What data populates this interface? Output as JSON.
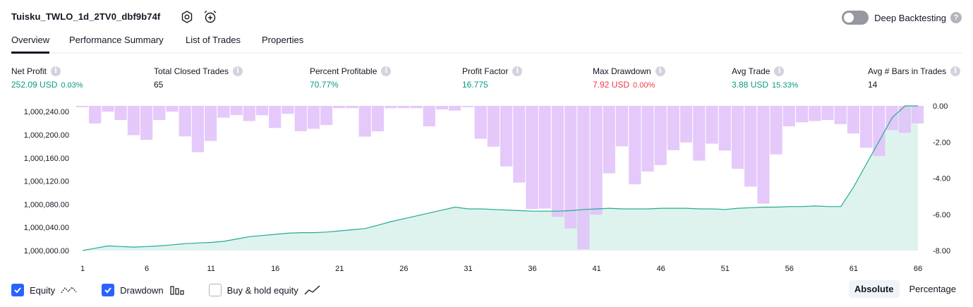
{
  "header": {
    "title": "Tuisku_TWLO_1d_2TV0_dbf9b74f",
    "deep_backtesting_label": "Deep Backtesting",
    "deep_backtesting_on": false,
    "help_glyph": "?"
  },
  "tabs": [
    {
      "label": "Overview",
      "active": true
    },
    {
      "label": "Performance Summary",
      "active": false
    },
    {
      "label": "List of Trades",
      "active": false
    },
    {
      "label": "Properties",
      "active": false
    }
  ],
  "metrics": [
    {
      "label": "Net Profit",
      "value": "252.09 USD",
      "pct": "0.03%",
      "tone": "pos"
    },
    {
      "label": "Total Closed Trades",
      "value": "65",
      "pct": "",
      "tone": "neu"
    },
    {
      "label": "Percent Profitable",
      "value": "70.77%",
      "pct": "",
      "tone": "pos"
    },
    {
      "label": "Profit Factor",
      "value": "16.775",
      "pct": "",
      "tone": "pos"
    },
    {
      "label": "Max Drawdown",
      "value": "7.92 USD",
      "pct": "0.00%",
      "tone": "neg"
    },
    {
      "label": "Avg Trade",
      "value": "3.88 USD",
      "pct": "15.33%",
      "tone": "pos"
    },
    {
      "label": "Avg # Bars in Trades",
      "value": "14",
      "pct": "",
      "tone": "neu"
    }
  ],
  "chart_data": {
    "type": "area",
    "x": [
      1,
      2,
      3,
      4,
      5,
      6,
      7,
      8,
      9,
      10,
      11,
      12,
      13,
      14,
      15,
      16,
      17,
      18,
      19,
      20,
      21,
      22,
      23,
      24,
      25,
      26,
      27,
      28,
      29,
      30,
      31,
      32,
      33,
      34,
      35,
      36,
      37,
      38,
      39,
      40,
      41,
      42,
      43,
      44,
      45,
      46,
      47,
      48,
      49,
      50,
      51,
      52,
      53,
      54,
      55,
      56,
      57,
      58,
      59,
      60,
      61,
      62,
      63,
      64,
      65,
      66
    ],
    "x_ticks": [
      "1",
      "6",
      "11",
      "16",
      "21",
      "26",
      "31",
      "36",
      "41",
      "46",
      "51",
      "56",
      "61",
      "66"
    ],
    "left_axis": {
      "ticks": [
        "1,000,000.00",
        "1,000,040.00",
        "1,000,080.00",
        "1,000,120.00",
        "1,000,160.00",
        "1,000,200.00",
        "1,000,240.00"
      ],
      "ylim": [
        1000000,
        1000250
      ]
    },
    "right_axis": {
      "ticks": [
        "0.00",
        "-2.00",
        "-4.00",
        "-6.00",
        "-8.00"
      ],
      "ylim": [
        -8,
        0
      ]
    },
    "series": [
      {
        "kind": "line",
        "axis": "left",
        "color": "#22ab94",
        "fill": "#dff3ee",
        "values": [
          1000000,
          1000004,
          1000008,
          1000007,
          1000006,
          1000007,
          1000008,
          1000010,
          1000012,
          1000013,
          1000014,
          1000016,
          1000020,
          1000024,
          1000026,
          1000028,
          1000030,
          1000031,
          1000031,
          1000032,
          1000034,
          1000036,
          1000038,
          1000044,
          1000050,
          1000055,
          1000060,
          1000065,
          1000070,
          1000075,
          1000072,
          1000072,
          1000071,
          1000070,
          1000069,
          1000068,
          1000068,
          1000068,
          1000069,
          1000071,
          1000072,
          1000073,
          1000072,
          1000072,
          1000072,
          1000073,
          1000073,
          1000073,
          1000072,
          1000072,
          1000071,
          1000073,
          1000074,
          1000075,
          1000075,
          1000076,
          1000076,
          1000077,
          1000076,
          1000076,
          1000110,
          1000150,
          1000190,
          1000230,
          1000255,
          1000252
        ]
      },
      {
        "kind": "bar",
        "axis": "right",
        "color": "#e1bff9",
        "values": [
          -0.07,
          -0.97,
          -0.32,
          -0.78,
          -1.62,
          -1.88,
          -0.78,
          -0.32,
          -1.69,
          -2.56,
          -1.94,
          -0.65,
          -0.51,
          -0.84,
          -0.52,
          -1.22,
          -0.44,
          -1.4,
          -1.27,
          -1.06,
          -0.13,
          -0.13,
          -1.7,
          -1.41,
          -0.13,
          -0.13,
          -0.13,
          -1.13,
          -0.2,
          -0.26,
          -0.07,
          -1.82,
          -2.26,
          -3.35,
          -4.24,
          -5.7,
          -5.68,
          -6.14,
          -6.78,
          -7.93,
          -6.02,
          -3.73,
          -2.24,
          -4.34,
          -3.63,
          -3.27,
          -2.45,
          -2.02,
          -3.03,
          -2.09,
          -2.47,
          -3.48,
          -4.47,
          -5.41,
          -2.68,
          -1.13,
          -0.91,
          -0.84,
          -0.78,
          -1.01,
          -1.53,
          -2.32,
          -2.77,
          -1.34,
          -1.49,
          -0.97
        ]
      }
    ],
    "legend": [
      {
        "label": "Equity",
        "checked": true,
        "icon": "equity-line-icon"
      },
      {
        "label": "Drawdown",
        "checked": true,
        "icon": "drawdown-bars-icon"
      },
      {
        "label": "Buy & hold equity",
        "checked": false,
        "icon": "trend-line-icon"
      }
    ],
    "grid": false
  },
  "scale": {
    "options": [
      {
        "label": "Absolute",
        "active": true
      },
      {
        "label": "Percentage",
        "active": false
      }
    ]
  }
}
